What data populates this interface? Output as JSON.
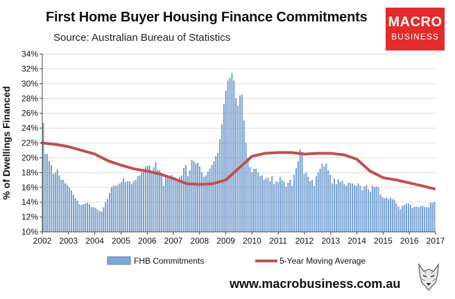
{
  "header": {
    "title": "First Home Buyer Housing Finance Commitments",
    "subtitle": "Source: Australian Bureau of Statistics"
  },
  "logo": {
    "line1": "MACRO",
    "line2": "BUSINESS"
  },
  "footer": {
    "url": "www.macrobusiness.com.au"
  },
  "colors": {
    "bars": "#7ea7d8",
    "bar_edge": "#4f7fb8",
    "line": "#c0504d",
    "logo_bg": "#e32b2b"
  },
  "chart_data": {
    "type": "bar",
    "title": "First Home Buyer Housing Finance Commitments",
    "ylabel": "% of Dwellings Financed",
    "xlabel": "",
    "ylim": [
      10,
      34
    ],
    "xlim": [
      2002,
      2017
    ],
    "yticks": [
      "10%",
      "12%",
      "14%",
      "16%",
      "18%",
      "20%",
      "22%",
      "24%",
      "26%",
      "28%",
      "30%",
      "32%",
      "34%"
    ],
    "xticks": [
      "2002",
      "2003",
      "2004",
      "2005",
      "2006",
      "2007",
      "2008",
      "2009",
      "2010",
      "2011",
      "2012",
      "2013",
      "2014",
      "2015",
      "2016",
      "2017"
    ],
    "legend_position": "bottom",
    "series": [
      {
        "name": "FHB Commitments",
        "kind": "bar",
        "values": [
          24.7,
          20.5,
          20.5,
          19.5,
          19.0,
          17.8,
          18.0,
          18.4,
          17.6,
          17.0,
          17.0,
          16.5,
          16.3,
          16.0,
          15.6,
          15.0,
          14.5,
          14.2,
          13.7,
          13.6,
          13.7,
          13.8,
          13.9,
          13.7,
          13.3,
          13.3,
          13.2,
          13.0,
          12.8,
          12.7,
          13.3,
          14.0,
          14.4,
          15.2,
          16.0,
          16.2,
          16.2,
          16.3,
          16.5,
          16.7,
          17.2,
          16.7,
          16.8,
          16.8,
          16.4,
          16.8,
          17.0,
          17.5,
          17.6,
          18.0,
          18.5,
          18.8,
          18.9,
          18.9,
          18.1,
          18.7,
          19.4,
          18.4,
          18.3,
          17.8,
          16.2,
          17.5,
          17.3,
          17.5,
          17.7,
          17.3,
          17.0,
          16.8,
          17.4,
          17.6,
          18.6,
          19.0,
          17.5,
          18.3,
          19.7,
          19.5,
          19.2,
          19.3,
          18.8,
          18.0,
          17.4,
          17.6,
          18.1,
          18.5,
          19.0,
          19.5,
          20.2,
          20.6,
          22.5,
          24.5,
          27.2,
          29.0,
          30.4,
          30.8,
          31.4,
          30.4,
          28.0,
          27.0,
          28.4,
          28.5,
          25.0,
          22.0,
          20.0,
          18.7,
          18.0,
          18.5,
          18.5,
          18.0,
          17.5,
          17.6,
          17.0,
          17.2,
          17.3,
          16.8,
          17.5,
          16.4,
          16.8,
          16.7,
          17.4,
          17.0,
          16.8,
          16.1,
          16.6,
          17.0,
          16.2,
          17.7,
          18.6,
          19.5,
          21.1,
          20.8,
          17.8,
          18.0,
          17.4,
          16.8,
          17.0,
          16.2,
          17.5,
          18.0,
          18.5,
          19.2,
          18.8,
          19.2,
          18.3,
          17.7,
          16.5,
          17.2,
          16.4,
          17.1,
          16.7,
          16.9,
          16.4,
          16.2,
          16.6,
          16.6,
          16.5,
          16.3,
          16.2,
          16.5,
          16.2,
          15.6,
          16.1,
          16.3,
          15.7,
          15.4,
          16.2,
          16.0,
          16.1,
          16.0,
          15.0,
          14.7,
          14.5,
          14.6,
          14.4,
          14.6,
          14.4,
          14.3,
          13.8,
          13.4,
          13.0,
          13.5,
          13.6,
          13.8,
          13.8,
          13.6,
          13.2,
          13.4,
          13.4,
          13.3,
          13.4,
          13.5,
          13.3,
          13.3,
          13.3,
          13.9,
          13.9,
          14.0
        ]
      },
      {
        "name": "5-Year Moving Average",
        "kind": "line",
        "x": [
          2002.0,
          2002.5,
          2003.0,
          2003.5,
          2004.0,
          2004.5,
          2005.0,
          2005.5,
          2006.0,
          2006.5,
          2007.0,
          2007.5,
          2008.0,
          2008.5,
          2009.0,
          2009.5,
          2010.0,
          2010.5,
          2011.0,
          2011.5,
          2012.0,
          2012.5,
          2013.0,
          2013.5,
          2014.0,
          2014.5,
          2015.0,
          2015.5,
          2016.0,
          2016.5,
          2016.95
        ],
        "y": [
          22.0,
          21.8,
          21.5,
          21.0,
          20.5,
          19.6,
          19.0,
          18.5,
          18.2,
          17.8,
          17.2,
          16.5,
          16.4,
          16.5,
          17.0,
          18.6,
          20.2,
          20.6,
          20.7,
          20.7,
          20.5,
          20.6,
          20.6,
          20.4,
          19.8,
          18.2,
          17.3,
          17.0,
          16.6,
          16.2,
          15.8
        ]
      }
    ]
  }
}
